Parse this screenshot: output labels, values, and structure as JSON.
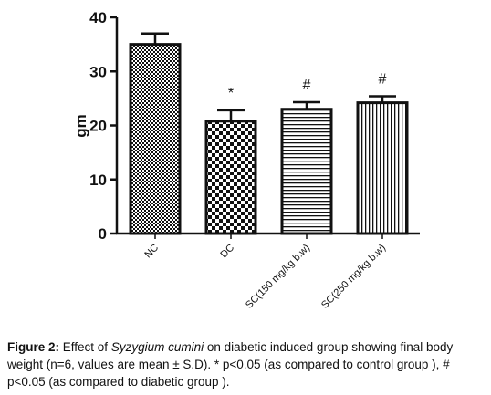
{
  "chart_data": {
    "type": "bar",
    "categories": [
      "NC",
      "DC",
      "SC(150 mg/kg b.w)",
      "SC(250 mg/kg b.w)"
    ],
    "values": [
      35,
      20.8,
      23,
      24.2
    ],
    "errors": [
      2,
      2,
      1.3,
      1.2
    ],
    "annotations": [
      "",
      "*",
      "#",
      "#"
    ],
    "patterns": [
      "checker-fine",
      "checker-coarse",
      "horizontal-lines",
      "vertical-lines"
    ],
    "ylabel": "gm",
    "xlabel": "",
    "ylim": [
      0,
      40
    ],
    "yticks": [
      0,
      10,
      20,
      30,
      40
    ],
    "grid": false
  },
  "caption": {
    "label": "Figure 2:",
    "part1": " Effect of ",
    "species": "Syzygium cumini",
    "part2": " on diabetic induced group showing final body weight (n=6, values are mean ± S.D). * p<0.05 (as compared to control group ), # p<0.05 (as compared to diabetic group )."
  }
}
